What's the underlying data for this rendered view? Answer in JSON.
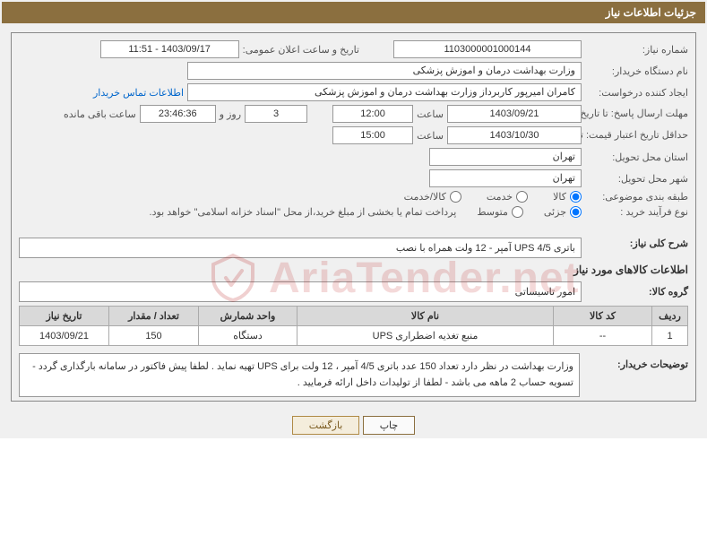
{
  "header": {
    "title": "جزئیات اطلاعات نیاز"
  },
  "fields": {
    "need_number_label": "شماره نیاز:",
    "need_number": "1103000001000144",
    "announce_date_label": "تاریخ و ساعت اعلان عمومی:",
    "announce_date": "1403/09/17 - 11:51",
    "buyer_device_label": "نام دستگاه خریدار:",
    "buyer_device": "وزارت بهداشت  درمان و اموزش پزشکی",
    "requester_label": "ایجاد کننده درخواست:",
    "requester": "کامران امیرپور کاربرداز وزارت بهداشت  درمان و اموزش پزشکی",
    "contact_link": "اطلاعات تماس خریدار",
    "deadline_send_label": "مهلت ارسال پاسخ: تا تاریخ:",
    "deadline_send_date": "1403/09/21",
    "hour_label": "ساعت",
    "deadline_send_hour": "12:00",
    "days_label": "روز و",
    "days_value": "3",
    "remaining_time": "23:46:36",
    "remaining_label": "ساعت باقی مانده",
    "min_validity_label": "حداقل تاریخ اعتبار قیمت: تا تاریخ:",
    "min_validity_date": "1403/10/30",
    "min_validity_hour": "15:00",
    "delivery_province_label": "استان محل تحویل:",
    "delivery_province": "تهران",
    "delivery_city_label": "شهر محل تحویل:",
    "delivery_city": "تهران",
    "subject_class_label": "طبقه بندی موضوعی:",
    "radio_kala": "کالا",
    "radio_khadamat": "خدمت",
    "radio_kalakhadamat": "کالا/خدمت",
    "purchase_type_label": "نوع فرآیند خرید :",
    "radio_jozi": "جزئی",
    "radio_motavaset": "متوسط",
    "purchase_note": "پرداخت تمام یا بخشی از مبلغ خرید،از محل \"اسناد خزانه اسلامی\" خواهد بود.",
    "overall_desc_label": "شرح کلی نیاز:",
    "overall_desc": "باتری UPS 4/5 آمپر - 12 ولت همراه با نصب",
    "goods_info_title": "اطلاعات کالاهای مورد نیاز",
    "goods_group_label": "گروه کالا:",
    "goods_group": "امور تاسیساتی",
    "buyer_explain_label": "توضیحات خریدار:",
    "buyer_explain": "وزارت بهداشت در نظر دارد تعداد 150 عدد باتری 4/5  آمپر ، 12 ولت برای UPS تهیه نماید . لطفا پیش فاکتور در سامانه بارگذاری گردد - تسویه حساب 2 ماهه می باشد -  لطفا از تولیدات داخل ارائه فرمایید .",
    "print_btn": "چاپ",
    "back_btn": "بازگشت"
  },
  "table": {
    "headers": {
      "row": "ردیف",
      "code": "کد کالا",
      "name": "نام کالا",
      "unit": "واحد شمارش",
      "qty": "تعداد / مقدار",
      "date": "تاریخ نیاز"
    },
    "rows": [
      {
        "row": "1",
        "code": "--",
        "name": "منبع تغذیه اضطراری UPS",
        "unit": "دستگاه",
        "qty": "150",
        "date": "1403/09/21"
      }
    ]
  },
  "colors": {
    "header_bg": "#8B6F3F",
    "border": "#999"
  },
  "watermark": "AriaTender.net"
}
